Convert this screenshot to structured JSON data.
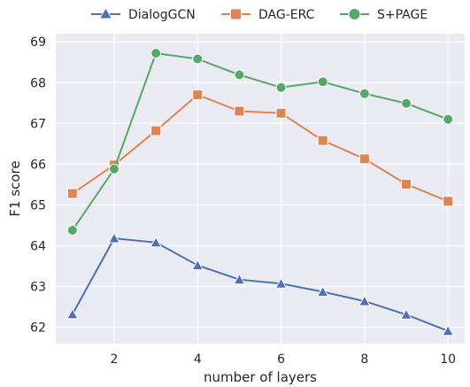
{
  "chart_data": {
    "type": "line",
    "xlabel": "number of layers",
    "ylabel": "F1 score",
    "x": [
      1,
      2,
      3,
      4,
      5,
      6,
      7,
      8,
      9,
      10
    ],
    "xticks": [
      2,
      4,
      6,
      8,
      10
    ],
    "yticks": [
      62,
      63,
      64,
      65,
      66,
      67,
      68,
      69
    ],
    "xlim": [
      0.6,
      10.4
    ],
    "ylim": [
      61.6,
      69.2
    ],
    "grid": true,
    "legend_position": "top-center",
    "background": "#eaeaf2",
    "series": [
      {
        "name": "DialogGCN",
        "color": "#4c72b0",
        "marker": "triangle",
        "values": [
          62.32,
          64.18,
          64.08,
          63.52,
          63.17,
          63.07,
          62.87,
          62.64,
          62.31,
          61.91
        ]
      },
      {
        "name": "DAG-ERC",
        "color": "#dd8452",
        "marker": "square",
        "values": [
          65.28,
          65.98,
          66.82,
          67.7,
          67.3,
          67.25,
          66.58,
          66.13,
          65.51,
          65.09
        ]
      },
      {
        "name": "S+PAGE",
        "color": "#55a868",
        "marker": "circle",
        "values": [
          64.38,
          65.88,
          68.72,
          68.58,
          68.19,
          67.88,
          68.02,
          67.73,
          67.49,
          67.1
        ]
      }
    ]
  }
}
